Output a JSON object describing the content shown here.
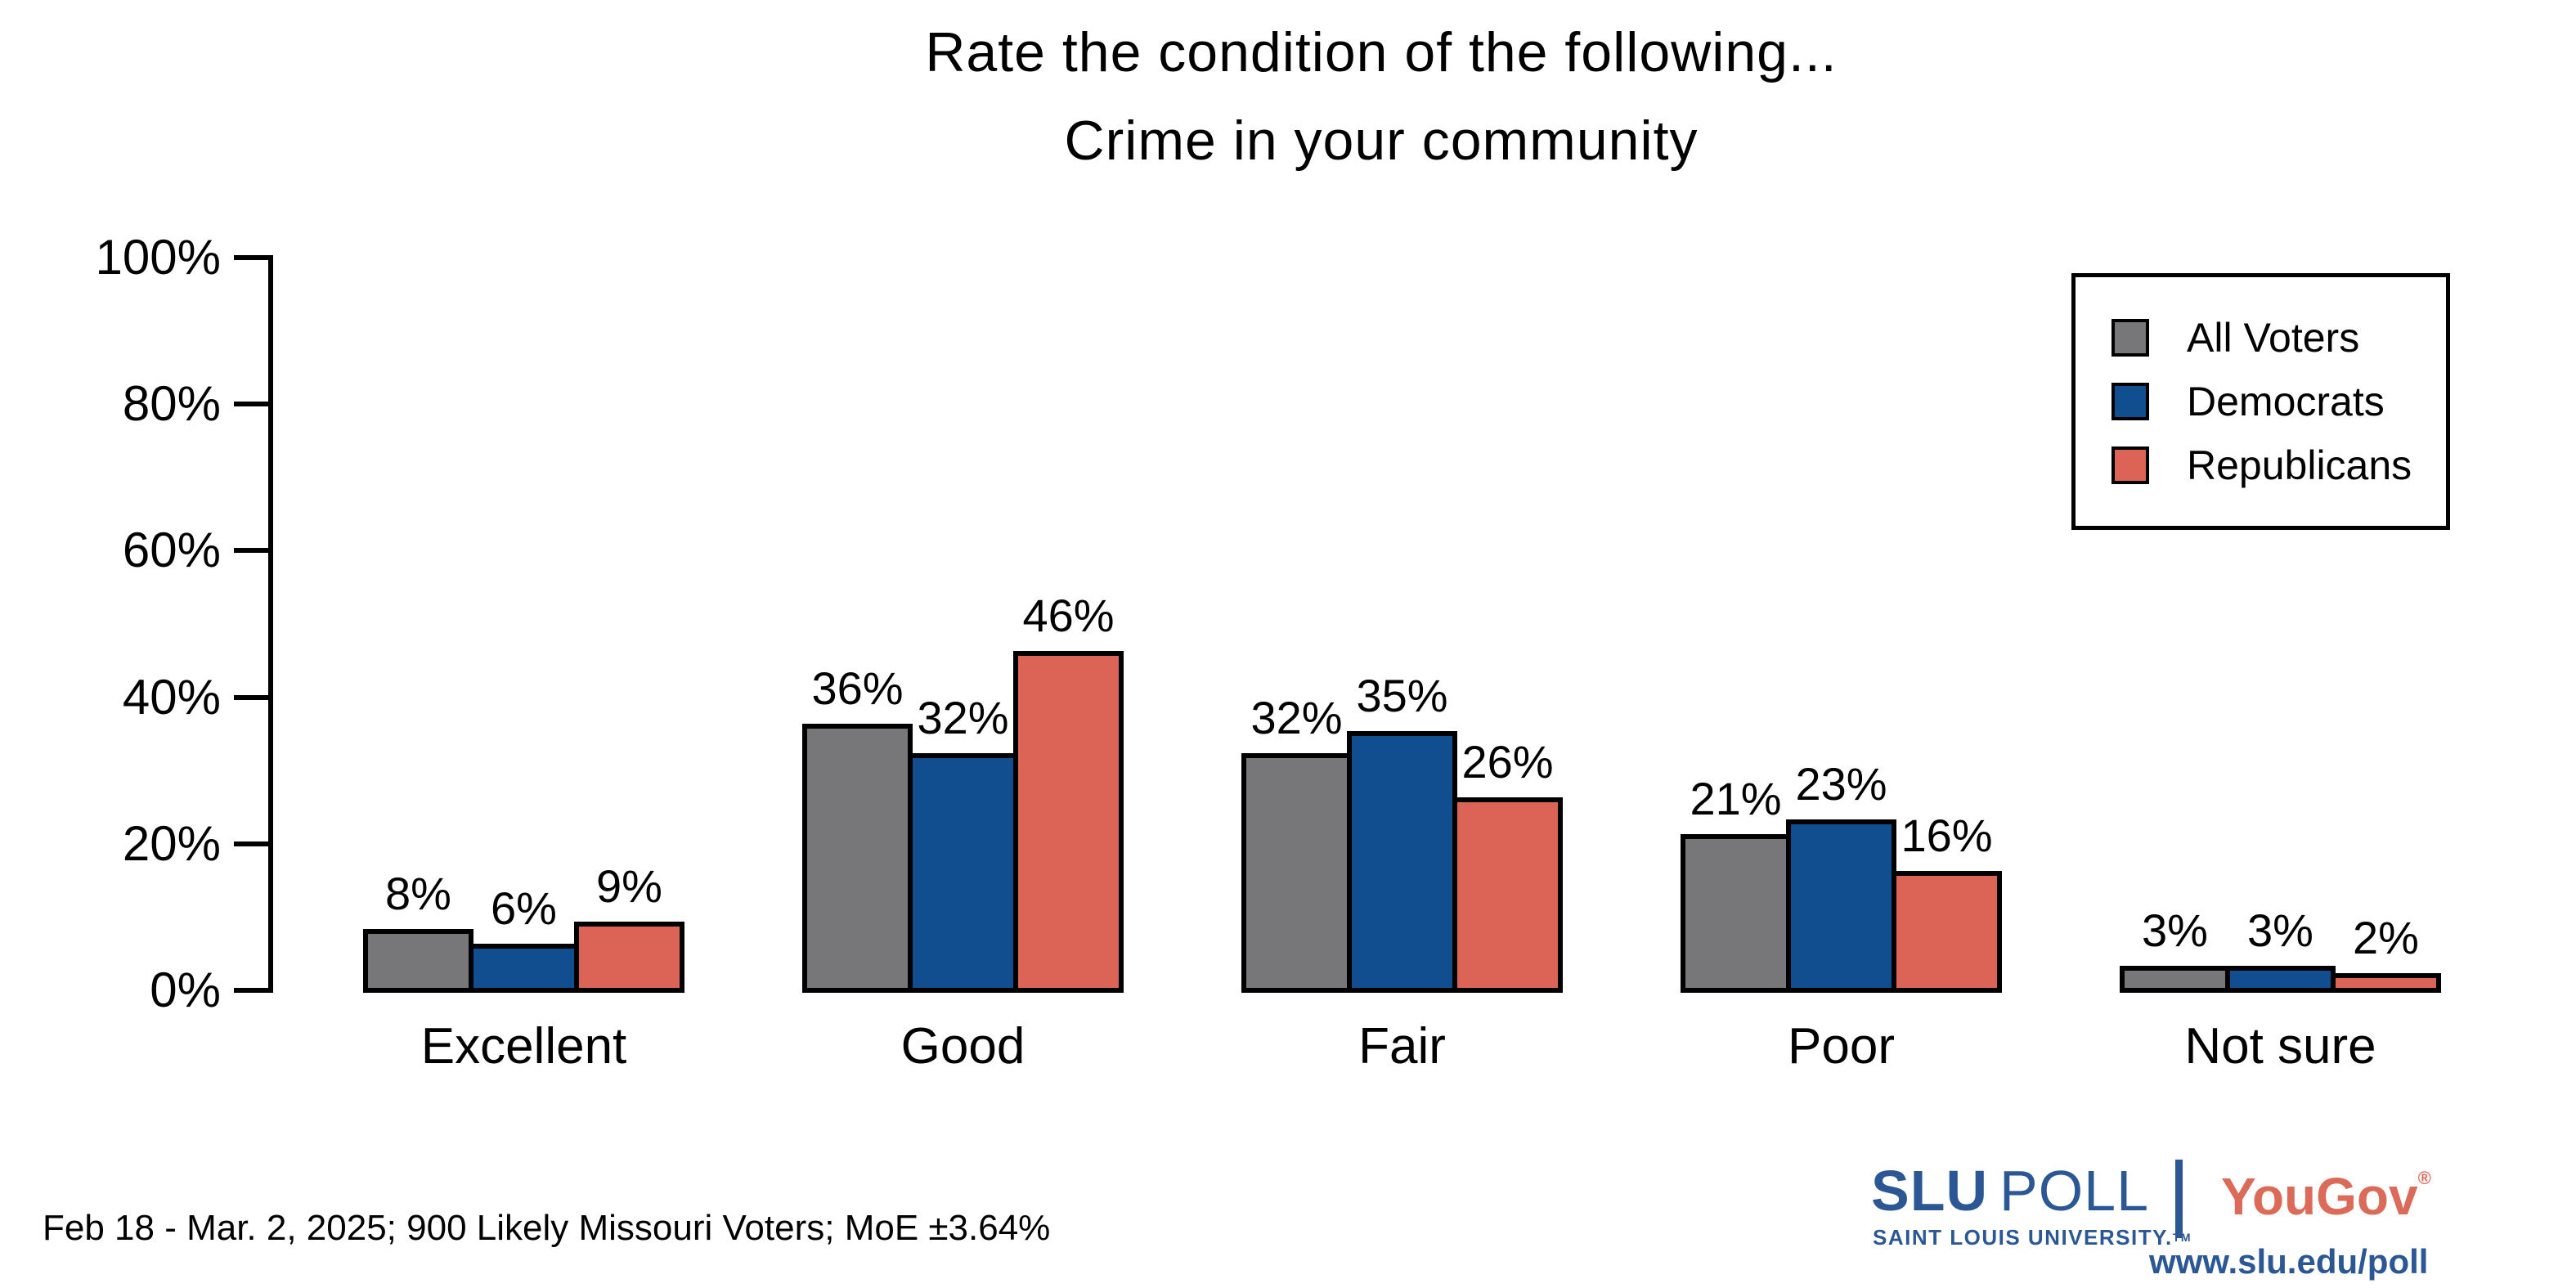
{
  "title": {
    "line1": "Rate the condition of the following...",
    "line2": "Crime in your community"
  },
  "chart_data": {
    "type": "bar",
    "categories": [
      "Excellent",
      "Good",
      "Fair",
      "Poor",
      "Not sure"
    ],
    "series": [
      {
        "name": "All Voters",
        "color": "#777779",
        "values": [
          8,
          36,
          32,
          21,
          3
        ]
      },
      {
        "name": "Democrats",
        "color": "#104E90",
        "values": [
          6,
          32,
          35,
          23,
          3
        ]
      },
      {
        "name": "Republicans",
        "color": "#DB6456",
        "values": [
          9,
          46,
          26,
          16,
          2
        ]
      }
    ],
    "value_label_suffix": "%",
    "title": "Rate the condition of the following... Crime in your community",
    "xlabel": "",
    "ylabel": "",
    "ylim": [
      0,
      100
    ],
    "ytick_step": 20,
    "yticks": [
      "0%",
      "20%",
      "40%",
      "60%",
      "80%",
      "100%"
    ],
    "grid": false,
    "legend_position": "upper right",
    "bar_outline_color": "#000000"
  },
  "legend": {
    "items": [
      "All Voters",
      "Democrats",
      "Republicans"
    ]
  },
  "footer": {
    "source_note": "Feb 18 - Mar. 2, 2025; 900 Likely Missouri Voters; MoE ±3.64%"
  },
  "branding": {
    "slu_bold": "SLU",
    "slu_light": "POLL",
    "slu_sub": "SAINT LOUIS UNIVERSITY.",
    "slu_tm": "TM",
    "partner": "YouGov",
    "partner_reg": "®",
    "url": "www.slu.edu/poll",
    "slu_color": "#2B5795",
    "partner_color": "#DC6A58"
  }
}
